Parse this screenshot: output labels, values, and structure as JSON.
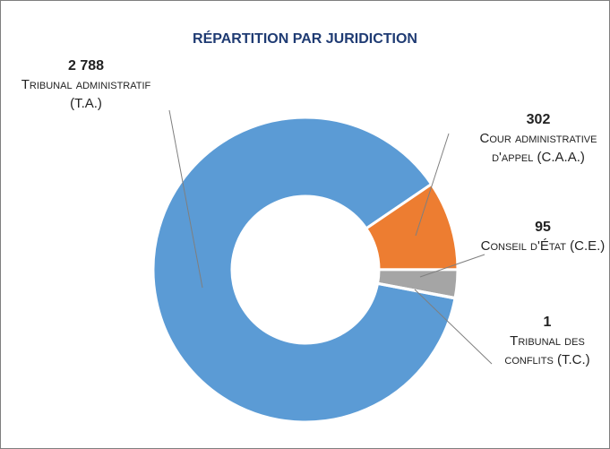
{
  "chart_data": {
    "type": "donut",
    "title": "RÉPARTITION PAR JURIDICTION",
    "categories": [
      "Tribunal administratif (T.A.)",
      "Cour administrative d'appel (C.A.A.)",
      "Conseil d'État (C.E.)",
      "Tribunal des conflits (T.C.)"
    ],
    "values": [
      2788,
      302,
      95,
      1
    ],
    "value_labels": [
      "2 788",
      "302",
      "95",
      "1"
    ],
    "colors": [
      "#5b9bd5",
      "#ed7d31",
      "#a5a5a5",
      "#264478"
    ]
  }
}
